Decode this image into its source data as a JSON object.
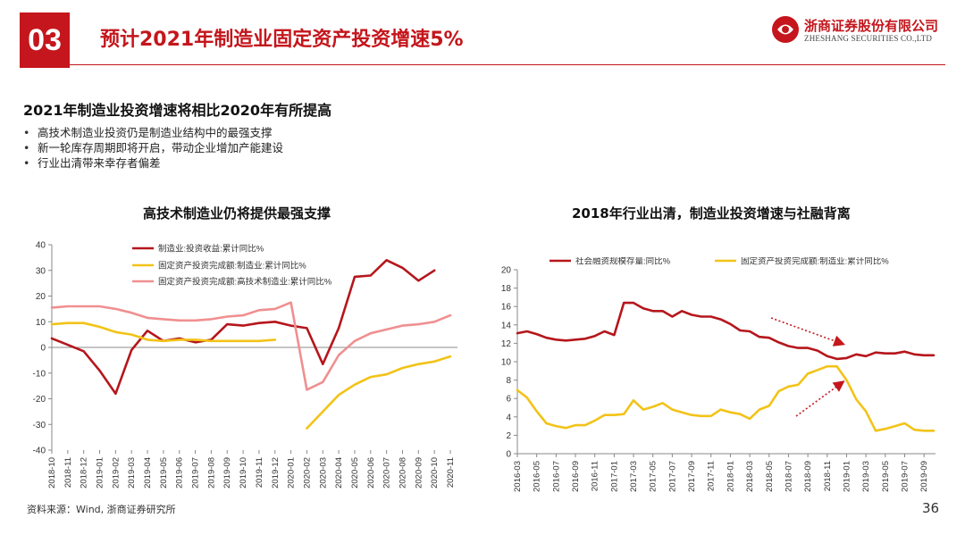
{
  "header": {
    "section_number": "03",
    "title": "预计2021年制造业固定资产投资增速5%",
    "brand_cn": "浙商证券股份有限公司",
    "brand_en": "ZHESHANG SECURITIES CO.,LTD",
    "brand_color": "#c4161c"
  },
  "subtitle": "2021年制造业投资增速将相比2020年有所提高",
  "bullets": [
    "高技术制造业投资仍是制造业结构中的最强支撑",
    "新一轮库存周期即将开启，带动企业增加产能建设",
    "行业出清带来幸存者偏差"
  ],
  "footer": {
    "source": "资料来源：Wind, 浙商证券研究所",
    "page": "36"
  },
  "chart_data": [
    {
      "type": "line",
      "title": "高技术制造业仍将提供最强支撑",
      "ylim": [
        -40,
        40
      ],
      "yticks": [
        -40,
        -30,
        -20,
        -10,
        0,
        10,
        20,
        30,
        40
      ],
      "categories": [
        "2018-10",
        "2018-11",
        "2018-12",
        "2019-01",
        "2019-02",
        "2019-03",
        "2019-04",
        "2019-05",
        "2019-06",
        "2019-07",
        "2019-08",
        "2019-09",
        "2019-10",
        "2019-11",
        "2019-12",
        "2020-01",
        "2020-02",
        "2020-03",
        "2020-04",
        "2020-05",
        "2020-06",
        "2020-07",
        "2020-08",
        "2020-09",
        "2020-10",
        "2020-11"
      ],
      "xtick_labels": [
        "2018-10",
        "2018-11",
        "2018-12",
        "2019-01",
        "2019-02",
        "2019-03",
        "2019-04",
        "2019-05",
        "2019-06",
        "2019-07",
        "2019-08",
        "2019-09",
        "2019-10",
        "2019-11",
        "2019-12",
        "2020-01",
        "2020-02",
        "2020-03",
        "2020-04",
        "2020-05",
        "2020-06",
        "2020-07",
        "2020-08",
        "2020-09",
        "2020-10",
        "2020-11"
      ],
      "legend_position": "top",
      "series": [
        {
          "name": "制造业:投资收益:累计同比%",
          "color": "#b5161c",
          "values": [
            3.5,
            1,
            -1.5,
            -9,
            -18,
            -1,
            6.5,
            2.5,
            3.5,
            2,
            3,
            9,
            8.5,
            9.5,
            10,
            8.5,
            7.5,
            -6.5,
            7.5,
            27.5,
            28,
            34,
            31,
            26,
            30,
            null
          ]
        },
        {
          "name": "固定资产投资完成额:制造业:累计同比%",
          "color": "#f2c318",
          "values": [
            9,
            9.5,
            9.5,
            8,
            6,
            5,
            3,
            2.5,
            3,
            3,
            2.5,
            2.5,
            2.5,
            2.5,
            3,
            null,
            -31.5,
            -25,
            -18.5,
            -14.5,
            -11.5,
            -10.5,
            -8,
            -6.5,
            -5.5,
            -3.5
          ]
        },
        {
          "name": "固定资产投资完成额:高技术制造业:累计同比%",
          "color": "#f08f90",
          "values": [
            15.5,
            16,
            16,
            16,
            15,
            13.5,
            11.5,
            11,
            10.5,
            10.5,
            11,
            12,
            12.5,
            14.5,
            15,
            17.5,
            -16.5,
            -13.5,
            -3,
            2.5,
            5.5,
            7,
            8.5,
            9,
            10,
            12.5
          ]
        }
      ]
    },
    {
      "type": "line",
      "title": "2018年行业出清，制造业投资增速与社融背离",
      "ylim": [
        0,
        20
      ],
      "yticks": [
        0,
        2,
        4,
        6,
        8,
        10,
        12,
        14,
        16,
        18,
        20
      ],
      "categories": [
        "2016-03",
        "2016-04",
        "2016-05",
        "2016-06",
        "2016-07",
        "2016-08",
        "2016-09",
        "2016-10",
        "2016-11",
        "2016-12",
        "2017-01",
        "2017-02",
        "2017-03",
        "2017-04",
        "2017-05",
        "2017-06",
        "2017-07",
        "2017-08",
        "2017-09",
        "2017-10",
        "2017-11",
        "2017-12",
        "2018-01",
        "2018-02",
        "2018-03",
        "2018-04",
        "2018-05",
        "2018-06",
        "2018-07",
        "2018-08",
        "2018-09",
        "2018-10",
        "2018-11",
        "2018-12",
        "2019-01",
        "2019-02",
        "2019-03",
        "2019-04",
        "2019-05",
        "2019-06",
        "2019-07",
        "2019-08",
        "2019-09",
        "2019-10"
      ],
      "xtick_labels": [
        "2016-03",
        "2016-05",
        "2016-07",
        "2016-09",
        "2016-11",
        "2017-01",
        "2017-03",
        "2017-05",
        "2017-07",
        "2017-09",
        "2017-11",
        "2018-01",
        "2018-03",
        "2018-05",
        "2018-07",
        "2018-09",
        "2018-11",
        "2019-01",
        "2019-03",
        "2019-05",
        "2019-07",
        "2019-09"
      ],
      "legend_position": "top",
      "series": [
        {
          "name": "社会融资规模存量:同比%",
          "color": "#b5161c",
          "values": [
            13.1,
            13.3,
            13.0,
            12.6,
            12.4,
            12.3,
            12.4,
            12.5,
            12.8,
            13.3,
            12.9,
            16.4,
            16.4,
            15.8,
            15.5,
            15.5,
            14.9,
            15.5,
            15.1,
            14.9,
            14.9,
            14.6,
            14.1,
            13.4,
            13.3,
            12.7,
            12.6,
            12.1,
            11.7,
            11.5,
            11.5,
            11.2,
            10.6,
            10.3,
            10.4,
            10.8,
            10.6,
            11.0,
            10.9,
            10.9,
            11.1,
            10.8,
            10.7,
            10.7
          ]
        },
        {
          "name": "固定资产投资完成额:制造业:累计同比%",
          "color": "#f2c318",
          "values": [
            6.9,
            6.1,
            4.6,
            3.3,
            3.0,
            2.8,
            3.1,
            3.1,
            3.6,
            4.2,
            4.2,
            4.3,
            5.8,
            4.8,
            5.1,
            5.5,
            4.8,
            4.5,
            4.2,
            4.1,
            4.1,
            4.8,
            4.5,
            4.3,
            3.8,
            4.8,
            5.2,
            6.8,
            7.3,
            7.5,
            8.7,
            9.1,
            9.5,
            9.5,
            8.0,
            5.9,
            4.6,
            2.5,
            2.7,
            3.0,
            3.3,
            2.6,
            2.5,
            2.5
          ]
        }
      ],
      "annotations": [
        "arrow-down-to-social-financing",
        "arrow-up-to-manufacturing-investment"
      ]
    }
  ]
}
